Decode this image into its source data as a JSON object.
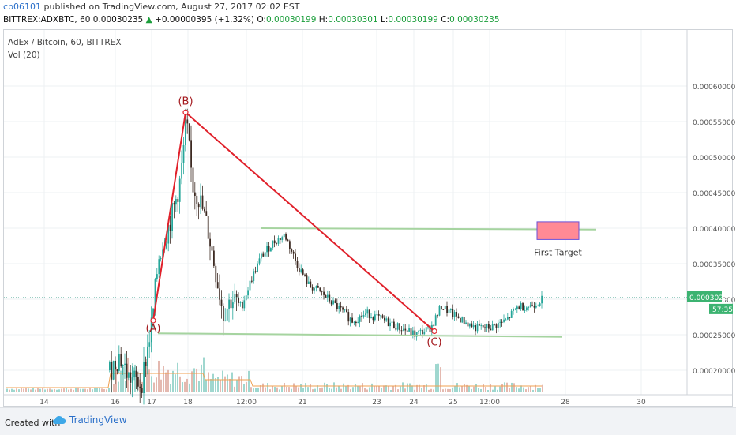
{
  "header": {
    "author": "cp06101",
    "published": "published on TradingView.com, August 27, 2017 02:02 EST",
    "symbol": "BITTREX:ADXBTC, 60",
    "last": "0.00030235",
    "change_arrow": "▲",
    "change": "+0.00000395 (+1.32%)",
    "open_label": "O:",
    "open": "0.00030199",
    "high_label": "H:",
    "high": "0.00030301",
    "low_label": "L:",
    "low": "0.00030199",
    "close_label": "C:",
    "close": "0.00030235"
  },
  "legend": {
    "title": "AdEx / Bitcoin, 60, BITTREX",
    "volume": "Vol (20)"
  },
  "footer": {
    "created_with": "Created with",
    "brand": "TradingView"
  },
  "colors": {
    "up": "#26a69a",
    "down": "#3d2a22",
    "wedge": "#e0202a",
    "support": "#a6d4a0",
    "target_fill": "#ff8a95",
    "target_border": "#6c4fd6",
    "price_badge": "#3cb371"
  },
  "chart_data": {
    "type": "candlestick",
    "x_ticks": [
      "14",
      "16",
      "17",
      "18",
      "12:00",
      "21",
      "23",
      "24",
      "25",
      "12:00",
      "28",
      "30"
    ],
    "y_ticks": [
      "0.00060000",
      "0.00055000",
      "0.00050000",
      "0.00045000",
      "0.00040000",
      "0.00035000",
      "0.00030000",
      "0.00025000",
      "0.00020000"
    ],
    "ylim": [
      0.00017,
      0.00065
    ],
    "current_price": "0.00030235",
    "countdown": "57:35",
    "price_path": [
      {
        "x": 138,
        "y": 0.0002
      },
      {
        "x": 150,
        "y": 0.00022
      },
      {
        "x": 162,
        "y": 0.00019
      },
      {
        "x": 178,
        "y": 0.00018
      },
      {
        "x": 192,
        "y": 0.00027
      },
      {
        "x": 200,
        "y": 0.00036
      },
      {
        "x": 212,
        "y": 0.0004
      },
      {
        "x": 220,
        "y": 0.00043
      },
      {
        "x": 228,
        "y": 0.00047
      },
      {
        "x": 235,
        "y": 0.00055
      },
      {
        "x": 243,
        "y": 0.00046
      },
      {
        "x": 252,
        "y": 0.00044
      },
      {
        "x": 262,
        "y": 0.0004
      },
      {
        "x": 272,
        "y": 0.00034
      },
      {
        "x": 282,
        "y": 0.00028
      },
      {
        "x": 292,
        "y": 0.0003
      },
      {
        "x": 305,
        "y": 0.00029
      },
      {
        "x": 318,
        "y": 0.00033
      },
      {
        "x": 330,
        "y": 0.00036
      },
      {
        "x": 345,
        "y": 0.00038
      },
      {
        "x": 360,
        "y": 0.00039
      },
      {
        "x": 375,
        "y": 0.00035
      },
      {
        "x": 390,
        "y": 0.00032
      },
      {
        "x": 405,
        "y": 0.00031
      },
      {
        "x": 425,
        "y": 0.00029
      },
      {
        "x": 445,
        "y": 0.00027
      },
      {
        "x": 465,
        "y": 0.00028
      },
      {
        "x": 485,
        "y": 0.00027
      },
      {
        "x": 505,
        "y": 0.00026
      },
      {
        "x": 525,
        "y": 0.00025
      },
      {
        "x": 545,
        "y": 0.00026
      },
      {
        "x": 558,
        "y": 0.00029
      },
      {
        "x": 570,
        "y": 0.00028
      },
      {
        "x": 585,
        "y": 0.00027
      },
      {
        "x": 600,
        "y": 0.00026
      },
      {
        "x": 620,
        "y": 0.00026
      },
      {
        "x": 640,
        "y": 0.00027
      },
      {
        "x": 655,
        "y": 0.00029
      },
      {
        "x": 670,
        "y": 0.00029
      },
      {
        "x": 686,
        "y": 0.0003
      }
    ],
    "wedge_points": [
      {
        "label": "(A)",
        "x": 194,
        "y": 0.00027
      },
      {
        "label": "(B)",
        "x": 235,
        "y": 0.000563
      },
      {
        "label": "(C)",
        "x": 550,
        "y": 0.000255
      }
    ],
    "support_lines": [
      {
        "x1": 330,
        "y1": 0.0004,
        "x2": 755,
        "y2": 0.000398
      },
      {
        "x1": 200,
        "y1": 0.000252,
        "x2": 712,
        "y2": 0.000247
      }
    ],
    "target_box": {
      "label": "First Target",
      "x1": 680,
      "x2": 733,
      "y_top": 0.000409,
      "y_bottom": 0.000384
    }
  }
}
